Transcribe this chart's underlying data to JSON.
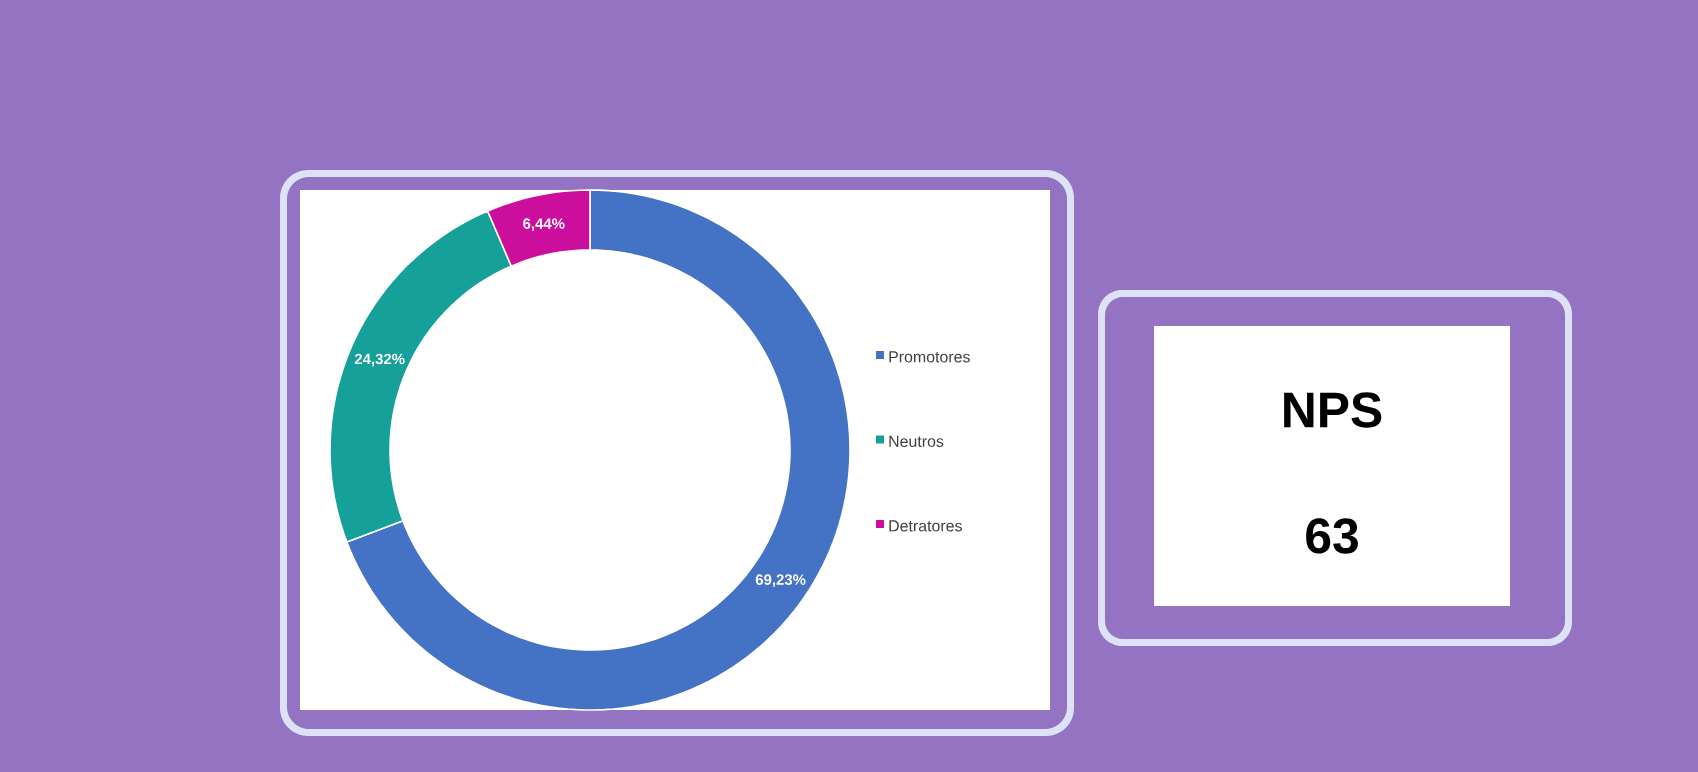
{
  "chart_data": [
    {
      "type": "donut",
      "categories": [
        "Promotores",
        "Neutros",
        "Detratores"
      ],
      "values": [
        69.23,
        24.32,
        6.44
      ],
      "value_labels": [
        "69,23%",
        "24,32%",
        "6,44%"
      ],
      "colors": [
        "#4472c4",
        "#16a09a",
        "#cc0e9c"
      ],
      "legend": "right"
    },
    {
      "type": "other",
      "title": "NPS",
      "annotations": [
        "63"
      ]
    }
  ]
}
